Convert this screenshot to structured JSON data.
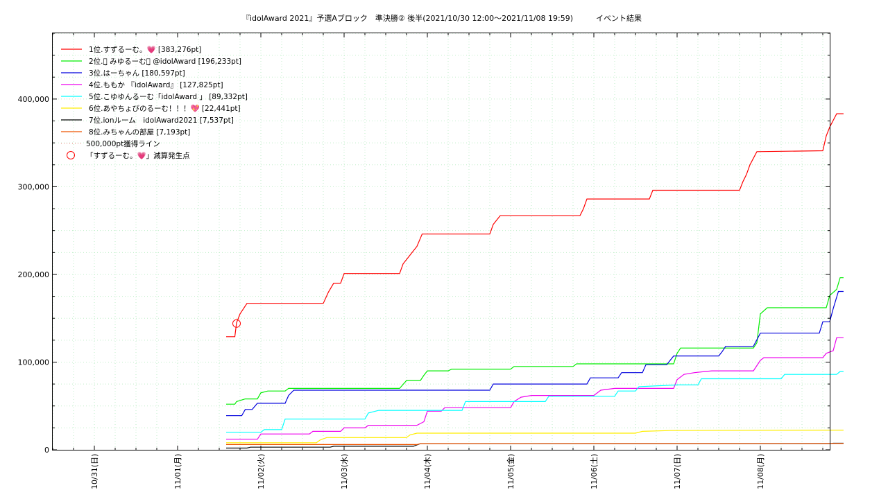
{
  "chart_data": {
    "type": "line",
    "title": "『idolAward 2021』予選Aブロック　準決勝② 後半(2021/10/30 12:00～2021/11/08 19:59)　　　イベント結果",
    "xlabel": "",
    "ylabel": "",
    "x_ticks": [
      "10/31(日)",
      "11/01(月)",
      "11/02(火)",
      "11/03(水)",
      "11/04(木)",
      "11/05(金)",
      "11/06(土)",
      "11/07(日)",
      "11/08(月)"
    ],
    "xlim": [
      "10/30 12:00",
      "11/08 20:00"
    ],
    "y_ticks": [
      "0",
      "100,000",
      "200,000",
      "300,000",
      "400,000"
    ],
    "ylim": [
      0,
      475000
    ],
    "grid": true,
    "legend_position": "top-left",
    "series": [
      {
        "name": "1位.すずるーむ。💗 [383,276pt]",
        "color": "#ff0000",
        "points": [
          [
            "11/01 14:00",
            129000
          ],
          [
            "11/01 16:30",
            129000
          ],
          [
            "11/01 17:00",
            145000
          ],
          [
            "11/01 18:00",
            155000
          ],
          [
            "11/01 20:00",
            167000
          ],
          [
            "11/02 18:00",
            167000
          ],
          [
            "11/02 19:30",
            180000
          ],
          [
            "11/02 21:00",
            190000
          ],
          [
            "11/02 23:00",
            190000
          ],
          [
            "11/03 00:00",
            201000
          ],
          [
            "11/03 16:00",
            201000
          ],
          [
            "11/03 17:00",
            212000
          ],
          [
            "11/03 19:00",
            222000
          ],
          [
            "11/03 21:00",
            232000
          ],
          [
            "11/03 22:30",
            246000
          ],
          [
            "11/04 18:00",
            246000
          ],
          [
            "11/04 19:00",
            257000
          ],
          [
            "11/04 21:00",
            267000
          ],
          [
            "11/05 20:00",
            267000
          ],
          [
            "11/05 21:00",
            275000
          ],
          [
            "11/05 22:00",
            286000
          ],
          [
            "11/06 16:00",
            286000
          ],
          [
            "11/06 17:00",
            296000
          ],
          [
            "11/07 18:00",
            296000
          ],
          [
            "11/07 19:00",
            306000
          ],
          [
            "11/07 20:00",
            314000
          ],
          [
            "11/07 21:00",
            325000
          ],
          [
            "11/07 23:00",
            340000
          ],
          [
            "11/08 18:00",
            341000
          ],
          [
            "11/08 19:00",
            358000
          ],
          [
            "11/08 20:00",
            368000
          ],
          [
            "11/08 22:00",
            383276
          ],
          [
            "11/08 23:59",
            383276
          ]
        ]
      },
      {
        "name": "2位.᠂̫̮ みゆるーむ᠂̫̮ @idolAward [196,233pt]",
        "color": "#00ee00",
        "points": [
          [
            "11/01 14:00",
            52000
          ],
          [
            "11/01 16:30",
            52000
          ],
          [
            "11/01 17:00",
            55000
          ],
          [
            "11/01 19:30",
            58000
          ],
          [
            "11/01 23:00",
            58000
          ],
          [
            "11/02 00:00",
            65000
          ],
          [
            "11/02 02:00",
            67000
          ],
          [
            "11/02 07:00",
            67000
          ],
          [
            "11/02 08:00",
            70000
          ],
          [
            "11/03 16:00",
            70000
          ],
          [
            "11/03 18:00",
            79000
          ],
          [
            "11/03 22:00",
            79000
          ],
          [
            "11/03 23:00",
            85000
          ],
          [
            "11/04 00:00",
            90000
          ],
          [
            "11/04 06:00",
            90000
          ],
          [
            "11/04 07:00",
            92000
          ],
          [
            "11/05 00:00",
            92000
          ],
          [
            "11/05 01:00",
            95000
          ],
          [
            "11/05 18:00",
            95000
          ],
          [
            "11/05 19:00",
            98000
          ],
          [
            "11/06 23:00",
            98000
          ],
          [
            "11/07 00:00",
            110000
          ],
          [
            "11/07 01:00",
            116000
          ],
          [
            "11/07 22:00",
            116000
          ],
          [
            "11/07 23:00",
            122000
          ],
          [
            "11/08 00:00",
            155000
          ],
          [
            "11/08 02:00",
            162000
          ],
          [
            "11/08 19:00",
            162000
          ],
          [
            "11/08 20:00",
            176000
          ],
          [
            "11/08 22:00",
            183000
          ],
          [
            "11/08 23:00",
            196233
          ],
          [
            "11/08 23:59",
            196233
          ]
        ]
      },
      {
        "name": "3位.はーちゃん [180,597pt]",
        "color": "#0000dd",
        "points": [
          [
            "11/01 14:00",
            39000
          ],
          [
            "11/01 18:30",
            39000
          ],
          [
            "11/01 19:30",
            46000
          ],
          [
            "11/01 21:30",
            46000
          ],
          [
            "11/01 23:00",
            53000
          ],
          [
            "11/02 07:00",
            53000
          ],
          [
            "11/02 08:00",
            62000
          ],
          [
            "11/02 09:30",
            68000
          ],
          [
            "11/04 18:00",
            68000
          ],
          [
            "11/04 19:00",
            75000
          ],
          [
            "11/05 22:00",
            75000
          ],
          [
            "11/05 23:00",
            82000
          ],
          [
            "11/06 07:00",
            82000
          ],
          [
            "11/06 08:00",
            88000
          ],
          [
            "11/06 14:00",
            88000
          ],
          [
            "11/06 15:00",
            97000
          ],
          [
            "11/06 21:00",
            97000
          ],
          [
            "11/06 23:00",
            107000
          ],
          [
            "11/07 12:00",
            107000
          ],
          [
            "11/07 13:00",
            112000
          ],
          [
            "11/07 14:00",
            118000
          ],
          [
            "11/07 22:00",
            118000
          ],
          [
            "11/08 00:00",
            133000
          ],
          [
            "11/08 17:00",
            133000
          ],
          [
            "11/08 18:00",
            146000
          ],
          [
            "11/08 20:00",
            146000
          ],
          [
            "11/08 21:00",
            161000
          ],
          [
            "11/08 22:30",
            180597
          ],
          [
            "11/08 23:59",
            180597
          ]
        ]
      },
      {
        "name": "4位.ももか 『idolAward』 [127,825pt]",
        "color": "#ee00ee",
        "points": [
          [
            "11/01 14:00",
            12000
          ],
          [
            "11/01 23:00",
            12000
          ],
          [
            "11/02 00:00",
            18000
          ],
          [
            "11/02 14:00",
            18000
          ],
          [
            "11/02 15:00",
            21000
          ],
          [
            "11/02 23:00",
            21000
          ],
          [
            "11/03 00:00",
            25000
          ],
          [
            "11/03 06:00",
            25000
          ],
          [
            "11/03 07:00",
            28000
          ],
          [
            "11/03 21:00",
            28000
          ],
          [
            "11/03 23:00",
            32000
          ],
          [
            "11/04 00:00",
            44000
          ],
          [
            "11/04 04:00",
            44000
          ],
          [
            "11/04 05:00",
            48000
          ],
          [
            "11/05 00:00",
            48000
          ],
          [
            "11/05 01:00",
            55000
          ],
          [
            "11/05 03:00",
            60000
          ],
          [
            "11/05 06:00",
            62000
          ],
          [
            "11/06 00:00",
            62000
          ],
          [
            "11/06 02:00",
            68000
          ],
          [
            "11/06 06:00",
            70000
          ],
          [
            "11/06 23:00",
            70000
          ],
          [
            "11/07 00:00",
            80000
          ],
          [
            "11/07 02:00",
            86000
          ],
          [
            "11/07 05:00",
            88000
          ],
          [
            "11/07 10:00",
            90000
          ],
          [
            "11/07 22:00",
            90000
          ],
          [
            "11/08 00:00",
            102000
          ],
          [
            "11/08 01:00",
            105000
          ],
          [
            "11/08 18:00",
            105000
          ],
          [
            "11/08 19:00",
            110000
          ],
          [
            "11/08 21:00",
            113000
          ],
          [
            "11/08 22:00",
            127825
          ],
          [
            "11/08 23:59",
            127825
          ]
        ]
      },
      {
        "name": "5位.こゆゆんるーむ「idolAward 」 [89,332pt]",
        "color": "#00ffff",
        "points": [
          [
            "11/01 14:00",
            20000
          ],
          [
            "11/02 00:00",
            20000
          ],
          [
            "11/02 01:00",
            23000
          ],
          [
            "11/02 06:00",
            23000
          ],
          [
            "11/02 07:00",
            35000
          ],
          [
            "11/03 06:00",
            35000
          ],
          [
            "11/03 07:00",
            42000
          ],
          [
            "11/03 10:00",
            45000
          ],
          [
            "11/04 10:00",
            45000
          ],
          [
            "11/04 11:00",
            55000
          ],
          [
            "11/05 10:00",
            55000
          ],
          [
            "11/05 11:00",
            61000
          ],
          [
            "11/06 06:00",
            61000
          ],
          [
            "11/06 07:00",
            67000
          ],
          [
            "11/06 12:00",
            67000
          ],
          [
            "11/06 13:00",
            72000
          ],
          [
            "11/07 00:00",
            74000
          ],
          [
            "11/07 06:00",
            74000
          ],
          [
            "11/07 07:00",
            81000
          ],
          [
            "11/08 06:00",
            81000
          ],
          [
            "11/08 07:00",
            86000
          ],
          [
            "11/08 22:00",
            86000
          ],
          [
            "11/08 23:00",
            89332
          ],
          [
            "11/08 23:59",
            89332
          ]
        ]
      },
      {
        "name": "6位.あやちょびのるーむ！！！💖 [22,441pt]",
        "color": "#ffee00",
        "points": [
          [
            "11/01 14:00",
            8000
          ],
          [
            "11/02 16:00",
            8000
          ],
          [
            "11/02 17:00",
            11000
          ],
          [
            "11/02 19:00",
            14000
          ],
          [
            "11/03 18:00",
            14000
          ],
          [
            "11/03 19:00",
            17000
          ],
          [
            "11/03 21:00",
            19000
          ],
          [
            "11/06 12:00",
            19000
          ],
          [
            "11/06 14:00",
            21000
          ],
          [
            "11/06 22:00",
            22000
          ],
          [
            "11/08 23:59",
            22441
          ]
        ]
      },
      {
        "name": "7位.ionルーム　idolAward2021 [7,537pt]",
        "color": "#000000",
        "points": [
          [
            "11/01 14:00",
            2000
          ],
          [
            "11/01 20:00",
            2000
          ],
          [
            "11/01 21:00",
            3000
          ],
          [
            "11/02 20:00",
            3000
          ],
          [
            "11/02 21:00",
            4000
          ],
          [
            "11/03 20:00",
            4000
          ],
          [
            "11/03 21:00",
            5500
          ],
          [
            "11/03 22:00",
            7000
          ],
          [
            "11/08 20:00",
            7000
          ],
          [
            "11/08 21:00",
            7537
          ],
          [
            "11/08 23:59",
            7537
          ]
        ]
      },
      {
        "name": "8位.みちゃんの部屋 [7,193pt]",
        "color": "#ee5500",
        "points": [
          [
            "11/01 14:00",
            6000
          ],
          [
            "11/03 21:00",
            6000
          ],
          [
            "11/03 22:00",
            7000
          ],
          [
            "11/08 23:59",
            7193
          ]
        ]
      },
      {
        "name": "500,000pt獲得ライン",
        "color": "#ff8888",
        "style": "dotted",
        "points": []
      }
    ],
    "markers": [
      {
        "name": "「すずるーむ。💗」減算発生点",
        "color": "#ff0000",
        "shape": "circle",
        "x": "11/01 17:00",
        "y": 144000
      }
    ]
  }
}
